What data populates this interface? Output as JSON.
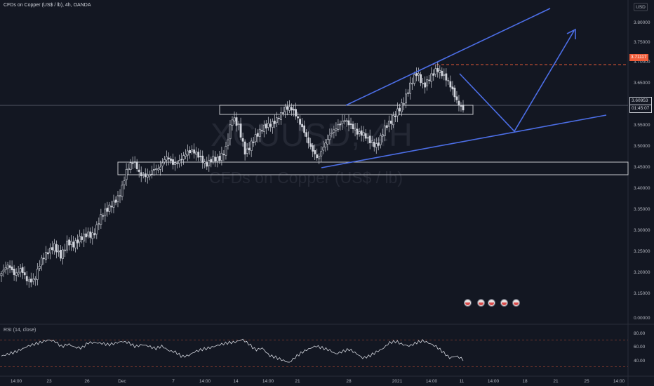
{
  "header": {
    "symbol_line": "CFDs on Copper (US$ / lb), 4h, OANDA",
    "currency_button": "USD",
    "rsi_label": "RSI (14, close)"
  },
  "watermark": {
    "ticker": "XCUUSD, 4H",
    "name": "CFDs on Copper (US$ / lb)"
  },
  "price_tags": {
    "marked": "3.71117",
    "current": "3.60953",
    "countdown": "01:45:07"
  },
  "colors": {
    "background": "#131722",
    "up": "#d1d4dc",
    "down": "#d1d4dc",
    "drawing": "#4c6ee6",
    "marked_line": "#f05d3a",
    "zone": "#c5c7cc",
    "rsi": "#d1d4dc",
    "rsi_band": "#f05d3a"
  },
  "events": {
    "icon": "earnings-flag-icon",
    "count": 5
  },
  "chart_data": {
    "type": "candlestick",
    "title": "CFDs on Copper (US$ / lb), 4h, OANDA",
    "interval": "4h",
    "exchange": "OANDA",
    "currency": "USD",
    "price_ylim": [
      3.13,
      3.85
    ],
    "price_ticks": [
      "3.80000",
      "3.75000",
      "3.70000",
      "3.65000",
      "3.60000",
      "3.55000",
      "3.50000",
      "3.45000",
      "3.40000",
      "3.35000",
      "3.30000",
      "3.25000",
      "3.20000",
      "3.15000",
      "0.00000"
    ],
    "time_ticks": [
      "14:00",
      "23",
      "26",
      "Dec",
      "7",
      "14:00",
      "14",
      "14:00",
      "21",
      "28",
      "2021",
      "14:00",
      "11",
      "14:00",
      "18",
      "21",
      "25",
      "14:00"
    ],
    "close_profile": [
      3.19,
      3.2,
      3.18,
      3.21,
      3.18,
      3.17,
      3.21,
      3.24,
      3.27,
      3.24,
      3.26,
      3.25,
      3.28,
      3.3,
      3.29,
      3.32,
      3.34,
      3.37,
      3.4,
      3.45,
      3.46,
      3.43,
      3.44,
      3.46,
      3.45,
      3.47,
      3.46,
      3.48,
      3.5,
      3.49,
      3.47,
      3.46,
      3.49,
      3.48,
      3.49,
      3.57,
      3.56,
      3.5,
      3.52,
      3.53,
      3.55,
      3.57,
      3.59,
      3.6,
      3.59,
      3.57,
      3.55,
      3.51,
      3.47,
      3.5,
      3.54,
      3.57,
      3.58,
      3.55,
      3.53,
      3.54,
      3.53,
      3.51,
      3.54,
      3.56,
      3.6,
      3.63,
      3.66,
      3.68,
      3.65,
      3.69,
      3.71,
      3.68,
      3.65,
      3.62,
      3.61
    ],
    "rsi": {
      "name": "RSI (14, close)",
      "ylim": [
        30,
        90
      ],
      "ticks": [
        "80.00",
        "60.00",
        "40.00"
      ],
      "bands": [
        70,
        30
      ],
      "values": [
        46,
        49,
        52,
        56,
        61,
        64,
        67,
        70,
        68,
        60,
        64,
        59,
        58,
        66,
        66,
        65,
        63,
        65,
        68,
        66,
        60,
        63,
        61,
        57,
        61,
        54,
        52,
        45,
        47,
        53,
        56,
        58,
        61,
        64,
        66,
        67,
        71,
        64,
        55,
        58,
        47,
        44,
        40,
        36,
        45,
        52,
        57,
        61,
        58,
        55,
        49,
        53,
        56,
        50,
        43,
        46,
        52,
        57,
        66,
        68,
        63,
        61,
        66,
        69,
        65,
        60,
        52,
        43,
        46,
        41
      ]
    },
    "annotations": [
      {
        "type": "horizontal_line",
        "price": 3.71117,
        "style": "dashed"
      },
      {
        "type": "channel_upper_line"
      },
      {
        "type": "channel_lower_line"
      },
      {
        "type": "projected_path",
        "shape": "down-then-up arrow"
      },
      {
        "type": "horizontal_zone",
        "label": "resistance box"
      },
      {
        "type": "horizontal_zone",
        "label": "support band"
      }
    ]
  }
}
